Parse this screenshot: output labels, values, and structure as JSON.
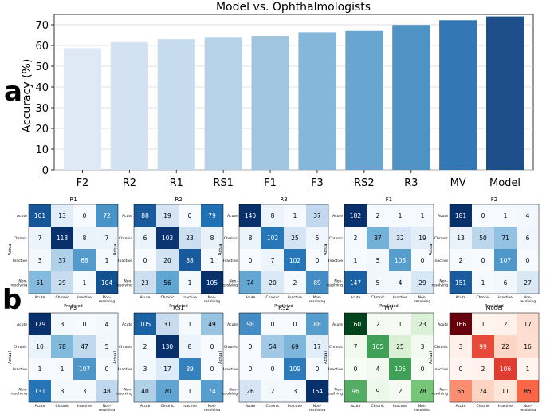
{
  "panel_labels": {
    "a": "a",
    "b": "b"
  },
  "chart_data": [
    {
      "type": "bar",
      "title": "Model vs. Ophthalmologists",
      "xlabel": "",
      "ylabel": "Accuracy (%)",
      "ylim": [
        0,
        75
      ],
      "yticks": [
        0,
        10,
        20,
        30,
        40,
        50,
        60,
        70
      ],
      "grid": "horizontal",
      "categories": [
        "F2",
        "R2",
        "R1",
        "RS1",
        "F1",
        "F3",
        "RS2",
        "R3",
        "MV",
        "Model"
      ],
      "values": [
        58.7,
        61.6,
        63.0,
        64.1,
        64.6,
        66.4,
        67.0,
        69.9,
        72.2,
        74.0
      ],
      "colors": [
        "#dfe9f5",
        "#d3e2f2",
        "#c6dbee",
        "#b5d2e8",
        "#a0c5e1",
        "#84b7da",
        "#68a5d0",
        "#4f92c4",
        "#3477b5",
        "#1f4f8a"
      ]
    },
    {
      "type": "heatmap",
      "subtype": "confusion-matrix-grid",
      "xlabel": "Predicted",
      "ylabel": "Actual",
      "row_labels": [
        "Acute",
        "Chronic",
        "Inactive",
        "Non-\nresolving"
      ],
      "col_labels": [
        "Acute",
        "Chronic",
        "Inactive",
        "Non-\nresolving"
      ],
      "matrices": [
        {
          "title": "R1",
          "cmap": "blue",
          "values": [
            [
              101,
              13,
              0,
              72
            ],
            [
              7,
              118,
              8,
              7
            ],
            [
              3,
              37,
              68,
              1
            ],
            [
              51,
              29,
              1,
              104
            ]
          ]
        },
        {
          "title": "R2",
          "cmap": "blue",
          "values": [
            [
              88,
              19,
              0,
              79
            ],
            [
              6,
              103,
              23,
              8
            ],
            [
              0,
              20,
              88,
              1
            ],
            [
              23,
              56,
              1,
              105
            ]
          ]
        },
        {
          "title": "R3",
          "cmap": "blue",
          "values": [
            [
              140,
              8,
              1,
              37
            ],
            [
              8,
              102,
              25,
              5
            ],
            [
              0,
              7,
              102,
              0
            ],
            [
              74,
              20,
              2,
              89
            ]
          ]
        },
        {
          "title": "F1",
          "cmap": "blue",
          "values": [
            [
              182,
              2,
              1,
              1
            ],
            [
              2,
              87,
              32,
              19
            ],
            [
              1,
              5,
              103,
              0
            ],
            [
              147,
              5,
              4,
              29
            ]
          ]
        },
        {
          "title": "F2",
          "cmap": "blue",
          "values": [
            [
              181,
              0,
              1,
              4
            ],
            [
              13,
              50,
              71,
              6
            ],
            [
              2,
              0,
              107,
              0
            ],
            [
              151,
              1,
              6,
              27
            ]
          ]
        },
        {
          "title": "F3",
          "cmap": "blue",
          "values": [
            [
              179,
              3,
              0,
              4
            ],
            [
              10,
              78,
              47,
              5
            ],
            [
              1,
              1,
              107,
              0
            ],
            [
              131,
              3,
              3,
              48
            ]
          ]
        },
        {
          "title": "RS1",
          "cmap": "blue",
          "values": [
            [
              105,
              31,
              1,
              49
            ],
            [
              2,
              130,
              8,
              0
            ],
            [
              3,
              17,
              89,
              0
            ],
            [
              40,
              70,
              1,
              74
            ]
          ]
        },
        {
          "title": "RS2",
          "cmap": "blue",
          "values": [
            [
              98,
              0,
              0,
              88
            ],
            [
              0,
              54,
              69,
              17
            ],
            [
              0,
              0,
              109,
              0
            ],
            [
              26,
              2,
              3,
              154
            ]
          ]
        },
        {
          "title": "MV",
          "cmap": "green",
          "values": [
            [
              160,
              2,
              1,
              23
            ],
            [
              7,
              105,
              25,
              3
            ],
            [
              0,
              4,
              105,
              0
            ],
            [
              96,
              9,
              2,
              78
            ]
          ]
        },
        {
          "title": "Model",
          "cmap": "red",
          "values": [
            [
              166,
              1,
              2,
              17
            ],
            [
              3,
              99,
              22,
              16
            ],
            [
              0,
              2,
              106,
              1
            ],
            [
              65,
              24,
              11,
              85
            ]
          ]
        }
      ]
    }
  ]
}
